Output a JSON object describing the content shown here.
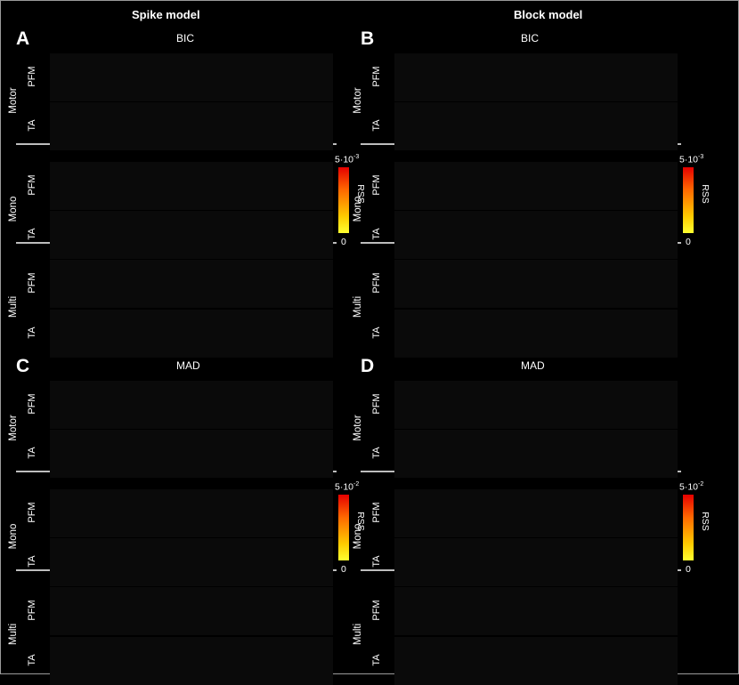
{
  "columns": [
    {
      "title": "Spike model"
    },
    {
      "title": "Block model"
    }
  ],
  "panels": [
    {
      "letter": "A",
      "metric": "BIC",
      "colorbar": {
        "max": "5·10",
        "exp": "-3",
        "min": "0",
        "label": "RSS"
      }
    },
    {
      "letter": "B",
      "metric": "BIC",
      "colorbar": {
        "max": "5·10",
        "exp": "-3",
        "min": "0",
        "label": "RSS"
      }
    },
    {
      "letter": "C",
      "metric": "MAD",
      "colorbar": {
        "max": "5·10",
        "exp": "-2",
        "min": "0",
        "label": "RSS"
      }
    },
    {
      "letter": "D",
      "metric": "MAD",
      "colorbar": {
        "max": "5·10",
        "exp": "-2",
        "min": "0",
        "label": "RSS"
      }
    }
  ],
  "groups": [
    "Motor",
    "Mono",
    "Multi"
  ],
  "rows": [
    "PFM",
    "TA"
  ],
  "colors": {
    "brain_fill": "#d8d36a",
    "brain_edge": "#b5323a",
    "background": "#000000",
    "separator": "#bdbdbd"
  }
}
